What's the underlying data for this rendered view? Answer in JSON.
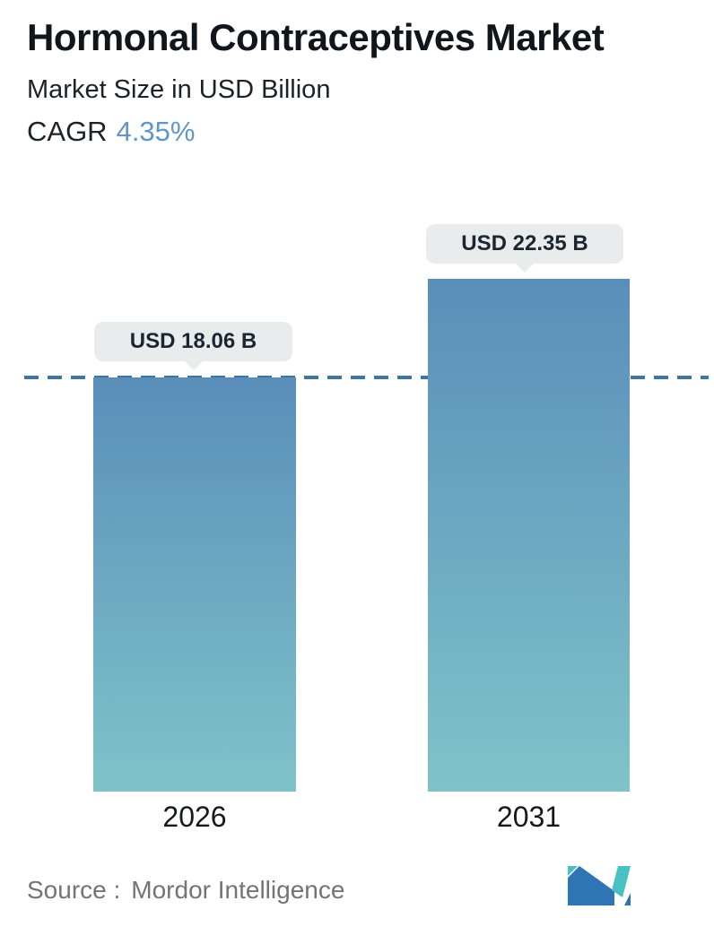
{
  "header": {
    "title": "Hormonal Contraceptives Market",
    "subtitle": "Market Size in USD Billion",
    "cagr_label": "CAGR",
    "cagr_value": "4.35%"
  },
  "chart_data": {
    "type": "bar",
    "categories": [
      "2026",
      "2031"
    ],
    "values": [
      18.06,
      22.35
    ],
    "value_labels": [
      "USD 18.06 B",
      "USD 22.35 B"
    ],
    "unit": "USD Billion",
    "title": "Hormonal Contraceptives Market",
    "subtitle": "Market Size in USD Billion",
    "cagr": "4.35%",
    "ylim": [
      0,
      24
    ],
    "reference_line": {
      "value": 18.06,
      "style": "dashed",
      "note": "level of first bar (2026)"
    },
    "legend": "none",
    "grid": "off",
    "bar_colors": {
      "gradient_top": "#5a8eba",
      "gradient_bottom": "#7fc3c9"
    }
  },
  "footer": {
    "source_label": "Source :",
    "source_value": "Mordor Intelligence",
    "logo_name": "mordor-intelligence-logo"
  },
  "colors": {
    "accent_blue": "#6296c8",
    "dashed_line": "#3f75a0",
    "callout_bg": "#e8eced",
    "callout_text": "#1d2630",
    "title_text": "#10161c",
    "year_label_text": "#14191e",
    "source_text": "#747474",
    "logo_blue": "#2e75b6",
    "logo_teal": "#49c0c4"
  }
}
